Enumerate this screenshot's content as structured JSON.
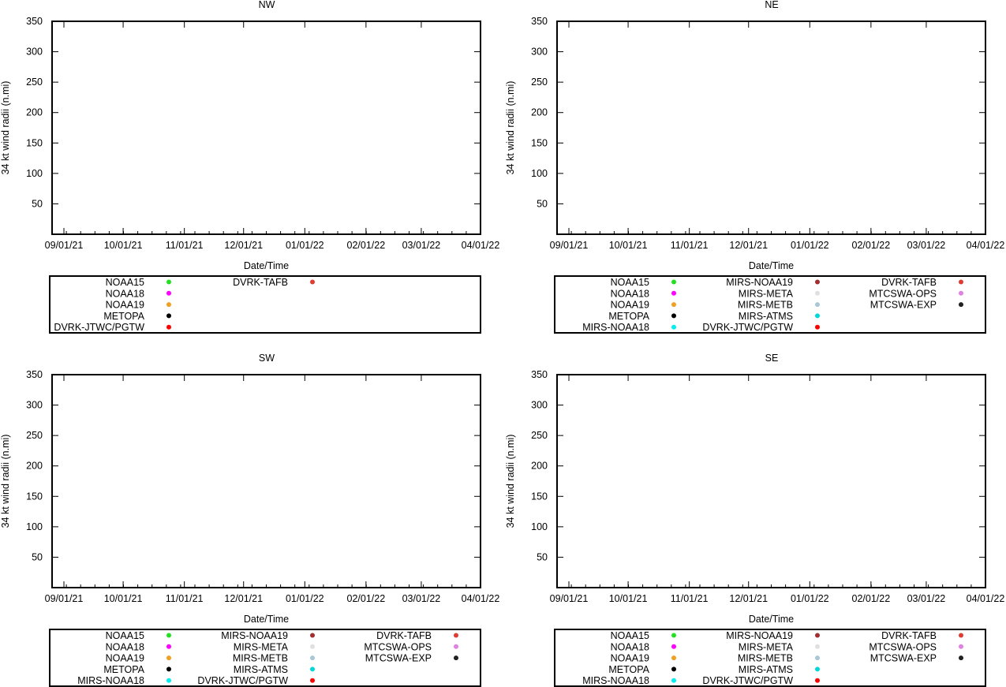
{
  "chart_data": [
    {
      "type": "scatter",
      "title": "NW",
      "xlabel": "Date/Time",
      "ylabel": "34 kt wind radii (n.mi)",
      "ylim": [
        0,
        350
      ],
      "yticks": [
        50,
        100,
        150,
        200,
        250,
        300,
        350
      ],
      "xlim": [
        "2021-08-26",
        "2022-03-31"
      ],
      "xtick_labels": [
        "09/01/21",
        "10/01/21",
        "11/01/21",
        "12/01/21",
        "01/01/22",
        "02/01/22",
        "03/01/22",
        "04/01/22"
      ],
      "x_minor_ticks": 30,
      "series": [],
      "legend": [
        {
          "name": "NOAA15",
          "color": "#22e022"
        },
        {
          "name": "NOAA18",
          "color": "#ff00ff"
        },
        {
          "name": "NOAA19",
          "color": "#f0a020"
        },
        {
          "name": "METOPA",
          "color": "#000000"
        },
        {
          "name": "DVRK-JTWC/PGTW",
          "color": "#ff0000"
        },
        {
          "name": "DVRK-TAFB",
          "color": "#e03c30"
        }
      ]
    },
    {
      "type": "scatter",
      "title": "NE",
      "xlabel": "Date/Time",
      "ylabel": "34 kt wind radii (n.mi)",
      "ylim": [
        0,
        350
      ],
      "yticks": [
        50,
        100,
        150,
        200,
        250,
        300,
        350
      ],
      "xlim": [
        "2021-08-26",
        "2022-03-31"
      ],
      "xtick_labels": [
        "09/01/21",
        "10/01/21",
        "11/01/21",
        "12/01/21",
        "01/01/22",
        "02/01/22",
        "03/01/22",
        "04/01/22"
      ],
      "x_minor_ticks": 30,
      "series": [],
      "legend": [
        {
          "name": "NOAA15",
          "color": "#22e022"
        },
        {
          "name": "NOAA18",
          "color": "#ff00ff"
        },
        {
          "name": "NOAA19",
          "color": "#f0a020"
        },
        {
          "name": "METOPA",
          "color": "#000000"
        },
        {
          "name": "MIRS-NOAA18",
          "color": "#00eeee"
        },
        {
          "name": "MIRS-NOAA19",
          "color": "#a03030"
        },
        {
          "name": "MIRS-META",
          "color": "#e0e0e0"
        },
        {
          "name": "MIRS-METB",
          "color": "#a8c8d8"
        },
        {
          "name": "MIRS-ATMS",
          "color": "#00d8d8"
        },
        {
          "name": "DVRK-JTWC/PGTW",
          "color": "#ff0000"
        },
        {
          "name": "DVRK-TAFB",
          "color": "#e03c30"
        },
        {
          "name": "MTCSWA-OPS",
          "color": "#e080e0"
        },
        {
          "name": "MTCSWA-EXP",
          "color": "#202020"
        }
      ]
    },
    {
      "type": "scatter",
      "title": "SW",
      "xlabel": "Date/Time",
      "ylabel": "34 kt wind radii (n.mi)",
      "ylim": [
        0,
        350
      ],
      "yticks": [
        50,
        100,
        150,
        200,
        250,
        300,
        350
      ],
      "xlim": [
        "2021-08-26",
        "2022-03-31"
      ],
      "xtick_labels": [
        "09/01/21",
        "10/01/21",
        "11/01/21",
        "12/01/21",
        "01/01/22",
        "02/01/22",
        "03/01/22",
        "04/01/22"
      ],
      "x_minor_ticks": 30,
      "series": [],
      "legend": [
        {
          "name": "NOAA15",
          "color": "#22e022"
        },
        {
          "name": "NOAA18",
          "color": "#ff00ff"
        },
        {
          "name": "NOAA19",
          "color": "#f0a020"
        },
        {
          "name": "METOPA",
          "color": "#000000"
        },
        {
          "name": "MIRS-NOAA18",
          "color": "#00eeee"
        },
        {
          "name": "MIRS-NOAA19",
          "color": "#a03030"
        },
        {
          "name": "MIRS-META",
          "color": "#e0e0e0"
        },
        {
          "name": "MIRS-METB",
          "color": "#a8c8d8"
        },
        {
          "name": "MIRS-ATMS",
          "color": "#00d8d8"
        },
        {
          "name": "DVRK-JTWC/PGTW",
          "color": "#ff0000"
        },
        {
          "name": "DVRK-TAFB",
          "color": "#e03c30"
        },
        {
          "name": "MTCSWA-OPS",
          "color": "#e080e0"
        },
        {
          "name": "MTCSWA-EXP",
          "color": "#202020"
        }
      ]
    },
    {
      "type": "scatter",
      "title": "SE",
      "xlabel": "Date/Time",
      "ylabel": "34 kt wind radii (n.mi)",
      "ylim": [
        0,
        350
      ],
      "yticks": [
        50,
        100,
        150,
        200,
        250,
        300,
        350
      ],
      "xlim": [
        "2021-08-26",
        "2022-03-31"
      ],
      "xtick_labels": [
        "09/01/21",
        "10/01/21",
        "11/01/21",
        "12/01/21",
        "01/01/22",
        "02/01/22",
        "03/01/22",
        "04/01/22"
      ],
      "x_minor_ticks": 30,
      "series": [],
      "legend": [
        {
          "name": "NOAA15",
          "color": "#22e022"
        },
        {
          "name": "NOAA18",
          "color": "#ff00ff"
        },
        {
          "name": "NOAA19",
          "color": "#f0a020"
        },
        {
          "name": "METOPA",
          "color": "#000000"
        },
        {
          "name": "MIRS-NOAA18",
          "color": "#00eeee"
        },
        {
          "name": "MIRS-NOAA19",
          "color": "#a03030"
        },
        {
          "name": "MIRS-META",
          "color": "#e0e0e0"
        },
        {
          "name": "MIRS-METB",
          "color": "#a8c8d8"
        },
        {
          "name": "MIRS-ATMS",
          "color": "#00d8d8"
        },
        {
          "name": "DVRK-JTWC/PGTW",
          "color": "#ff0000"
        },
        {
          "name": "DVRK-TAFB",
          "color": "#e03c30"
        },
        {
          "name": "MTCSWA-OPS",
          "color": "#e080e0"
        },
        {
          "name": "MTCSWA-EXP",
          "color": "#202020"
        }
      ]
    }
  ]
}
